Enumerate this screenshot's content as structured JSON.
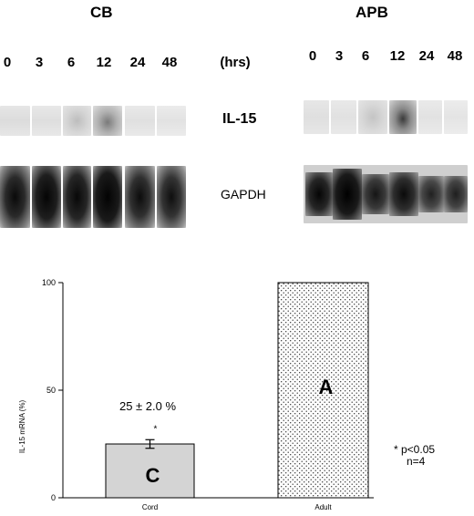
{
  "panels": [
    {
      "title": "CB",
      "lanes": [
        "0",
        "3",
        "6",
        "12",
        "24",
        "48"
      ]
    },
    {
      "title": "APB",
      "lanes": [
        "0",
        "3",
        "6",
        "12",
        "24",
        "48"
      ]
    }
  ],
  "units_label": "(hrs)",
  "rows": [
    {
      "label": "IL-15"
    },
    {
      "label": "GAPDH"
    }
  ],
  "chart_data": {
    "type": "bar",
    "categories": [
      "Cord",
      "Adult"
    ],
    "values": [
      25,
      100
    ],
    "error": [
      2.0,
      0
    ],
    "ylabel": "IL-15 mRNA (%)",
    "ylim": [
      0,
      100
    ],
    "yticks": [
      "0",
      "50",
      "100"
    ],
    "bar_letters": [
      "C",
      "A"
    ],
    "annotations": {
      "cord_value": "25 ± 2.0 %",
      "asterisk": "*",
      "stat_line1": "* p<0.05",
      "stat_line2": "n=4"
    }
  }
}
